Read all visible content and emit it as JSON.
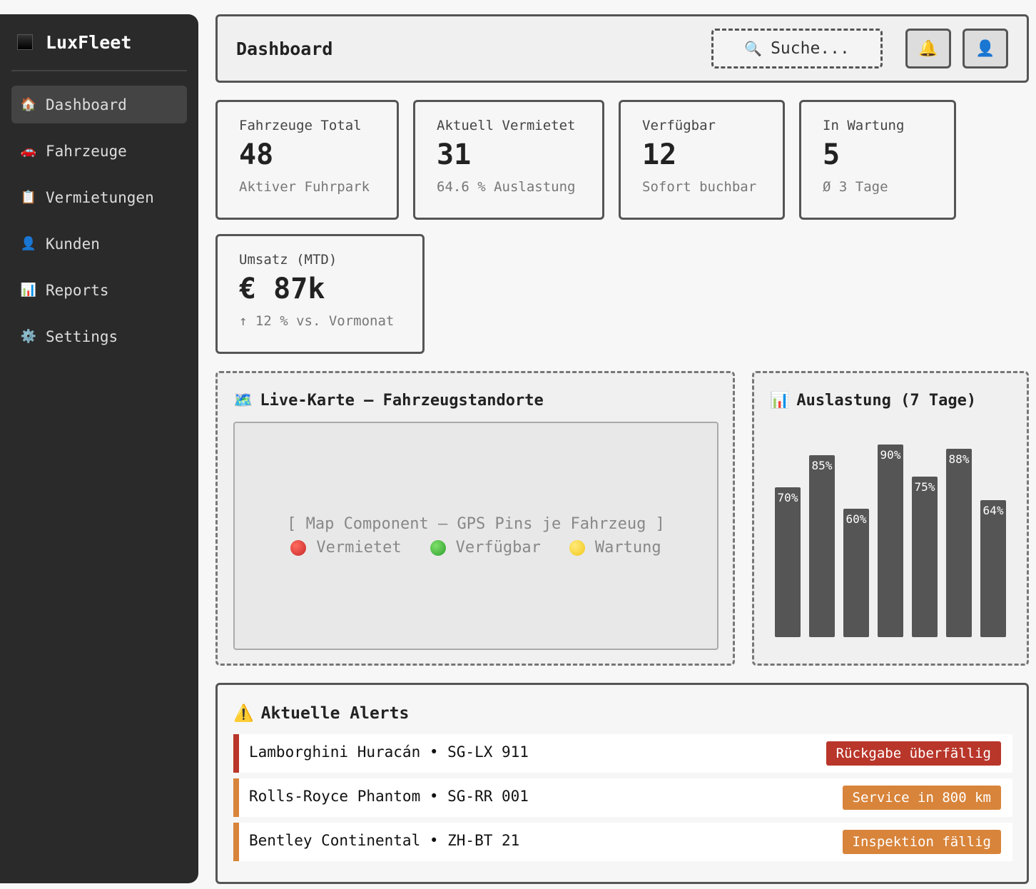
{
  "sidebar": {
    "brand": "LuxFleet",
    "items": [
      {
        "icon": "🏠",
        "label": "Dashboard",
        "active": true
      },
      {
        "icon": "🚗",
        "label": "Fahrzeuge"
      },
      {
        "icon": "📋",
        "label": "Vermietungen"
      },
      {
        "icon": "👤",
        "label": "Kunden"
      },
      {
        "icon": "📊",
        "label": "Reports"
      },
      {
        "icon": "⚙️",
        "label": "Settings"
      }
    ]
  },
  "header": {
    "title": "Dashboard",
    "search_icon": "🔍",
    "search_placeholder": "Suche...",
    "bell_icon": "🔔",
    "user_icon": "👤"
  },
  "stats": [
    {
      "label": "Fahrzeuge Total",
      "value": "48",
      "sub": "Aktiver Fuhrpark"
    },
    {
      "label": "Aktuell Vermietet",
      "value": "31",
      "sub": "64.6 % Auslastung"
    },
    {
      "label": "Verfügbar",
      "value": "12",
      "sub": "Sofort buchbar"
    },
    {
      "label": "In Wartung",
      "value": "5",
      "sub": "Ø 3 Tage"
    },
    {
      "label": "Umsatz (MTD)",
      "value": "€ 87k",
      "sub": "↑ 12 % vs. Vormonat"
    }
  ],
  "map": {
    "icon": "🗺️",
    "title": "Live-Karte — Fahrzeugstandorte",
    "placeholder": "[ Map Component — GPS Pins je Fahrzeug ]",
    "legend": [
      {
        "label": "Vermietet",
        "color": "#c62828"
      },
      {
        "label": "Verfügbar",
        "color": "#2e9e2e"
      },
      {
        "label": "Wartung",
        "color": "#f2c81b"
      }
    ]
  },
  "chart_panel": {
    "icon": "📊",
    "title": "Auslastung (7 Tage)"
  },
  "chart_data": {
    "type": "bar",
    "categories": [
      "",
      "",
      "",
      "",
      "",
      "",
      ""
    ],
    "values": [
      70,
      85,
      60,
      90,
      75,
      88,
      64
    ],
    "labels": [
      "70%",
      "85%",
      "60%",
      "90%",
      "75%",
      "88%",
      "64%"
    ],
    "ylim": [
      0,
      100
    ],
    "bar_color": "#555555",
    "label_color": "#ffffff"
  },
  "alerts": {
    "icon": "⚠️",
    "title": "Aktuelle Alerts",
    "items": [
      {
        "text": "Lamborghini Huracán • SG-LX 911",
        "badge": "Rückgabe überfällig",
        "color": "#b9362a"
      },
      {
        "text": "Rolls-Royce Phantom • SG-RR 001",
        "badge": "Service in 800 km",
        "color": "#d8843a"
      },
      {
        "text": "Bentley Continental • ZH-BT 21",
        "badge": "Inspektion fällig",
        "color": "#d8843a"
      }
    ]
  }
}
